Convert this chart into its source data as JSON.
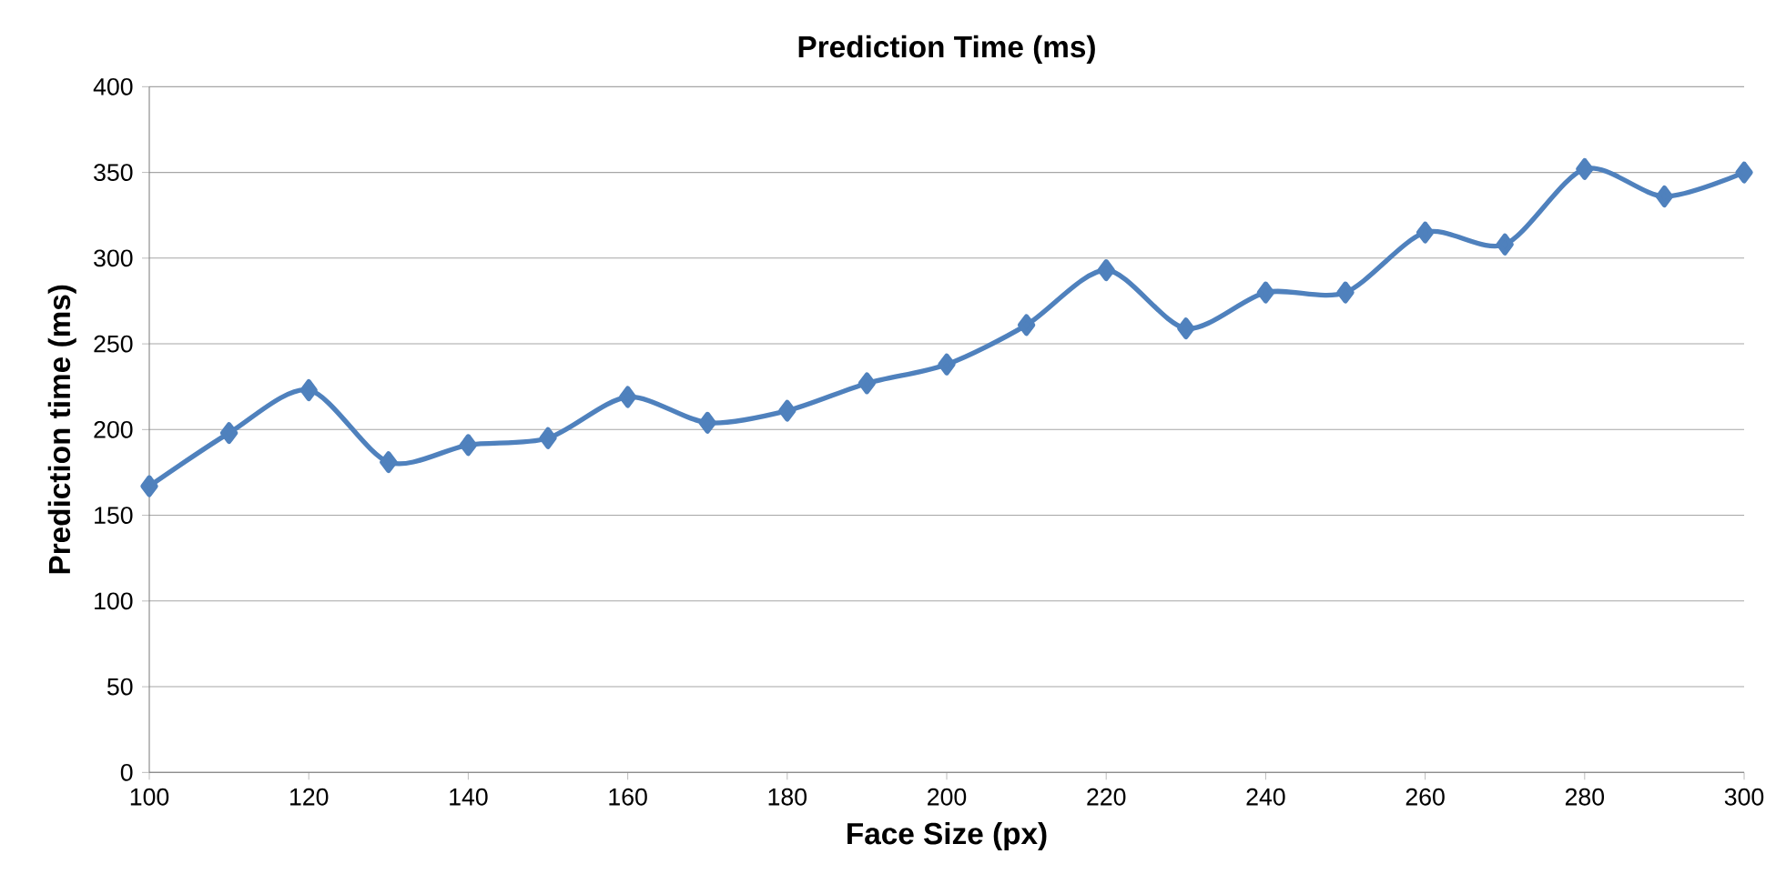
{
  "chart_data": {
    "type": "line",
    "title": "Prediction Time (ms)",
    "xlabel": "Face Size (px)",
    "ylabel": "Prediction time (ms)",
    "x": [
      100,
      110,
      120,
      130,
      140,
      150,
      160,
      170,
      180,
      190,
      200,
      210,
      220,
      230,
      240,
      250,
      260,
      270,
      280,
      290,
      300
    ],
    "series": [
      {
        "color": "#4f81bd",
        "values": [
          167,
          198,
          223,
          181,
          191,
          195,
          219,
          204,
          211,
          227,
          238,
          261,
          293,
          259,
          280,
          280,
          315,
          308,
          352,
          336,
          350
        ]
      }
    ],
    "xlim": [
      100,
      300
    ],
    "xticks": [
      100,
      120,
      140,
      160,
      180,
      200,
      220,
      240,
      260,
      280,
      300
    ],
    "ylim": [
      0,
      400
    ],
    "yticks": [
      0,
      50,
      100,
      150,
      200,
      250,
      300,
      350,
      400
    ],
    "grid": "y",
    "marker": "diamond",
    "line_style": "solid"
  }
}
